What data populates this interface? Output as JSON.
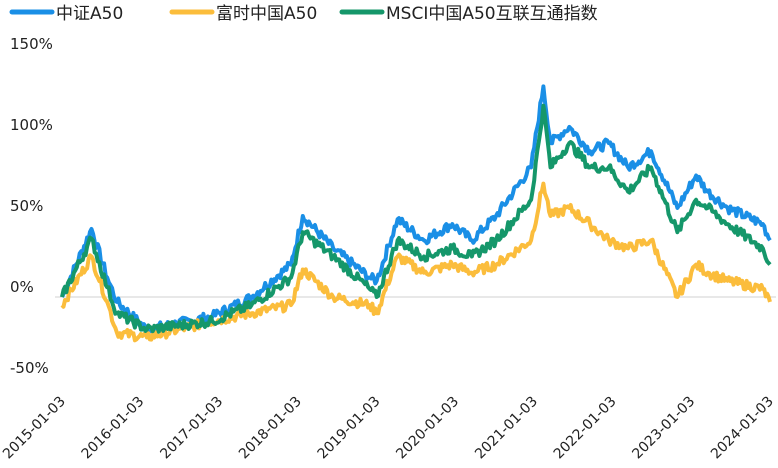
{
  "chart_data": {
    "type": "line",
    "title": "",
    "xlabel": "",
    "ylabel": "",
    "ylim": [
      -50,
      150
    ],
    "yticks": [
      "150%",
      "100%",
      "50%",
      "0%",
      "-50%"
    ],
    "ytick_values": [
      150,
      100,
      50,
      0,
      -50
    ],
    "xticks": [
      "2015-01-03",
      "2016-01-03",
      "2017-01-03",
      "2018-01-03",
      "2019-01-03",
      "2020-01-03",
      "2021-01-03",
      "2022-01-03",
      "2023-01-03",
      "2024-01-03"
    ],
    "xlim": [
      "2015-01-03",
      "2024-01-03"
    ],
    "grid": false,
    "zero_line": true,
    "legend_placement": "top-left",
    "x": [
      "2015-01-03",
      "2015-05-20",
      "2015-08-01",
      "2015-09-15",
      "2016-02-01",
      "2016-12-01",
      "2017-06-01",
      "2017-12-01",
      "2018-01-25",
      "2018-06-15",
      "2018-12-01",
      "2019-01-03",
      "2019-04-10",
      "2019-08-10",
      "2019-12-20",
      "2020-03-20",
      "2020-07-10",
      "2020-12-20",
      "2021-02-15",
      "2021-03-20",
      "2021-06-15",
      "2021-09-20",
      "2021-12-15",
      "2022-03-15",
      "2022-06-30",
      "2022-10-30",
      "2023-01-25",
      "2023-03-20",
      "2023-06-20",
      "2023-12-01",
      "2024-01-03"
    ],
    "series": [
      {
        "name": "中证A50",
        "color": "#1a8fe6",
        "values": [
          0,
          42,
          12,
          -3,
          -20,
          -12,
          0,
          20,
          50,
          30,
          12,
          10,
          48,
          35,
          45,
          35,
          50,
          80,
          130,
          95,
          105,
          90,
          95,
          80,
          90,
          55,
          75,
          65,
          55,
          45,
          35
        ]
      },
      {
        "name": "富时中国A50",
        "color": "#fbbd3c",
        "values": [
          -5,
          25,
          -3,
          -22,
          -25,
          -15,
          -10,
          -5,
          17,
          0,
          -5,
          -10,
          25,
          15,
          20,
          15,
          20,
          35,
          70,
          50,
          55,
          45,
          35,
          30,
          35,
          0,
          20,
          15,
          10,
          5,
          -3
        ]
      },
      {
        "name": "MSCI中国A50互联互通指数",
        "color": "#15976a",
        "values": [
          0,
          36,
          6,
          -10,
          -20,
          -15,
          -5,
          12,
          40,
          25,
          5,
          0,
          35,
          25,
          30,
          25,
          35,
          60,
          118,
          80,
          95,
          80,
          80,
          65,
          80,
          40,
          60,
          55,
          45,
          30,
          20
        ]
      }
    ]
  }
}
